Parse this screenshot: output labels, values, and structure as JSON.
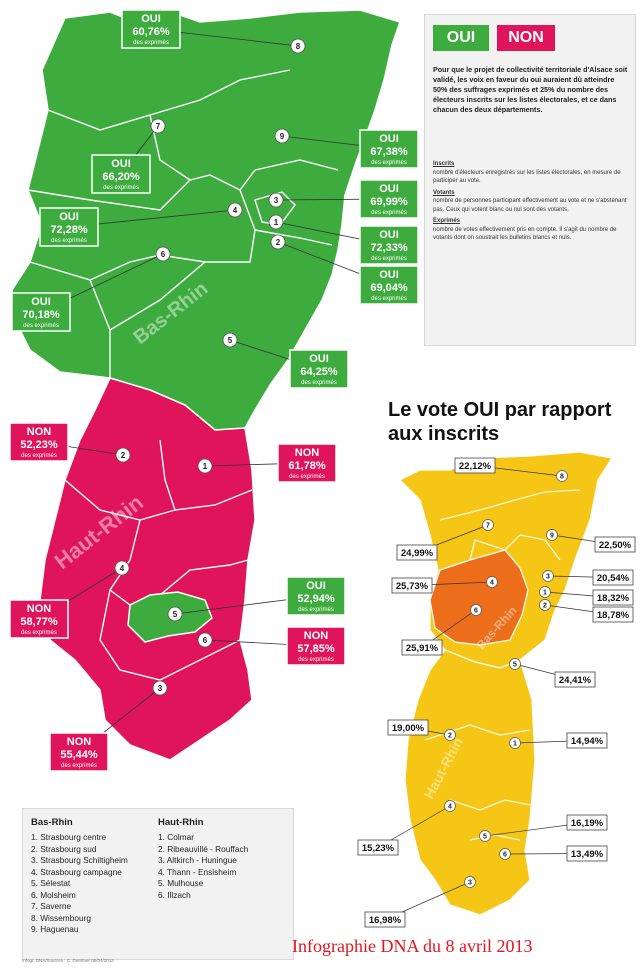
{
  "header": {
    "oui_label": "OUI",
    "non_label": "NON"
  },
  "intro_text": "Pour que le projet de collectivité territoriale d'Alsace soit validé, les voix en faveur du oui auraient dû atteindre 50% des suffrages exprimés et 25% du nombre des électeurs inscrits sur les listes électorales, et ce dans chacun des deux départements.",
  "definitions": [
    {
      "term": "Inscrits",
      "text": "nombre d'électeurs enregistrés sur les listes électorales, en mesure de participer au vote."
    },
    {
      "term": "Votants",
      "text": "nombre de personnes participant effectivement au vote et ne s'abstenant pas. Ceux qui votent blanc ou nul sont des votants."
    },
    {
      "term": "Exprimés",
      "text": "nombre de votes effectivement pris en compte. Il s'agit du nombre de votants dont on soustrait les bulletins blancs et nuls."
    }
  ],
  "map_labels": {
    "bas_rhin": "Bas-Rhin",
    "haut_rhin": "Haut-Rhin"
  },
  "sub_label": "des exprimés",
  "exprimes_results": [
    {
      "num": "8",
      "vote": "OUI",
      "pct": "60,76",
      "color": "#3dab3d"
    },
    {
      "num": "7",
      "vote": "OUI",
      "pct": "66,20",
      "color": "#3dab3d"
    },
    {
      "num": "9",
      "vote": "OUI",
      "pct": "67,38",
      "color": "#3dab3d"
    },
    {
      "num": "4",
      "vote": "OUI",
      "pct": "72,28",
      "color": "#3dab3d"
    },
    {
      "num": "3",
      "vote": "OUI",
      "pct": "69,99",
      "color": "#3dab3d"
    },
    {
      "num": "1",
      "vote": "OUI",
      "pct": "72,33",
      "color": "#3dab3d"
    },
    {
      "num": "2",
      "vote": "OUI",
      "pct": "69,04",
      "color": "#3dab3d"
    },
    {
      "num": "6",
      "vote": "OUI",
      "pct": "70,18",
      "color": "#3dab3d"
    },
    {
      "num": "5",
      "vote": "OUI",
      "pct": "64,25",
      "color": "#3dab3d"
    },
    {
      "num": "2",
      "vote": "NON",
      "pct": "52,23",
      "color": "#e0145a"
    },
    {
      "num": "1",
      "vote": "NON",
      "pct": "61,78",
      "color": "#e0145a"
    },
    {
      "num": "4",
      "vote": "NON",
      "pct": "58,77",
      "color": "#e0145a"
    },
    {
      "num": "5",
      "vote": "OUI",
      "pct": "52,94",
      "color": "#3dab3d"
    },
    {
      "num": "6",
      "vote": "NON",
      "pct": "57,85",
      "color": "#e0145a"
    },
    {
      "num": "3",
      "vote": "NON",
      "pct": "55,44",
      "color": "#e0145a"
    }
  ],
  "inscrits_title": "Le vote OUI par rapport aux inscrits",
  "inscrits_results": [
    {
      "num": "8",
      "pct": "22,12"
    },
    {
      "num": "7",
      "pct": "24,99"
    },
    {
      "num": "9",
      "pct": "22,50"
    },
    {
      "num": "3",
      "pct": "20,54"
    },
    {
      "num": "1",
      "pct": "18,32"
    },
    {
      "num": "2",
      "pct": "18,78"
    },
    {
      "num": "4",
      "pct": "25,73"
    },
    {
      "num": "6",
      "pct": "25,91"
    },
    {
      "num": "5",
      "pct": "24,41"
    },
    {
      "num": "2",
      "pct": "19,00"
    },
    {
      "num": "1",
      "pct": "14,94"
    },
    {
      "num": "4",
      "pct": "15,23"
    },
    {
      "num": "5",
      "pct": "16,19"
    },
    {
      "num": "6",
      "pct": "13,49"
    },
    {
      "num": "3",
      "pct": "16,98"
    }
  ],
  "fill_colors": {
    "oui": "#3dab3d",
    "non": "#e0145a",
    "yellow": "#f6c616",
    "orange": "#ec6e1b"
  },
  "key": {
    "bas_rhin_title": "Bas-Rhin",
    "bas_rhin": [
      "1. Strasbourg centre",
      "2. Strasbourg sud",
      "3. Strasbourg Schiltigheim",
      "4. Strasbourg campagne",
      "5. Sélestat",
      "6. Molsheim",
      "7. Saverne",
      "8. Wissembourg",
      "9. Haguenau"
    ],
    "haut_rhin_title": "Haut-Rhin",
    "haut_rhin": [
      "1. Colmar",
      "2. Ribeauvillé - Rouffach",
      "3. Altkirch - Huningue",
      "4. Thann - Ensisheim",
      "5. Mulhouse",
      "6. Illzach"
    ]
  },
  "credit": "Infogr. DNA/Sources : C. Gerstner 08/04/2013",
  "caption": "Infographie DNA du 8 avril 2013"
}
